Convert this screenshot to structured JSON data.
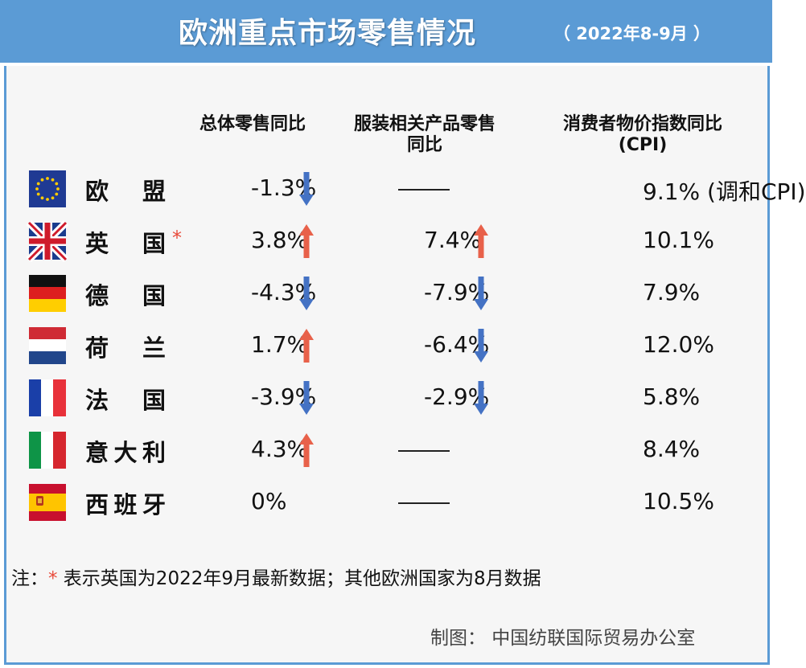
{
  "header": {
    "title": "欧洲重点市场零售情况",
    "period": "（ 2022年8-9月 ）"
  },
  "chart_data": {
    "type": "table",
    "columns": [
      "总体零售同比",
      "服装相关产品零售同比",
      "消费者物价指数同比 (CPI)"
    ],
    "rows": [
      {
        "flag": "eu-flag-icon",
        "country": "欧盟",
        "star": "",
        "total": "-1.3%",
        "total_dir": "down",
        "apparel": "——",
        "apparel_dir": "",
        "cpi": "9.1% (调和CPI)"
      },
      {
        "flag": "uk-flag-icon",
        "country": "英国",
        "star": "*",
        "total": "3.8%",
        "total_dir": "up",
        "apparel": "7.4%",
        "apparel_dir": "up",
        "cpi": "10.1%"
      },
      {
        "flag": "germany-flag-icon",
        "country": "德国",
        "star": "",
        "total": "-4.3%",
        "total_dir": "down",
        "apparel": "-7.9%",
        "apparel_dir": "down",
        "cpi": "7.9%"
      },
      {
        "flag": "netherlands-flag-icon",
        "country": "荷兰",
        "star": "",
        "total": "1.7%",
        "total_dir": "up",
        "apparel": "-6.4%",
        "apparel_dir": "down",
        "cpi": "12.0%"
      },
      {
        "flag": "france-flag-icon",
        "country": "法国",
        "star": "",
        "total": "-3.9%",
        "total_dir": "down",
        "apparel": "-2.9%",
        "apparel_dir": "down",
        "cpi": "5.8%"
      },
      {
        "flag": "italy-flag-icon",
        "country": "意大利",
        "star": "",
        "total": "4.3%",
        "total_dir": "up",
        "apparel": "——",
        "apparel_dir": "",
        "cpi": "8.4%"
      },
      {
        "flag": "spain-flag-icon",
        "country": "西班牙",
        "star": "",
        "total": "0%",
        "total_dir": "",
        "apparel": "——",
        "apparel_dir": "",
        "cpi": "10.5%"
      }
    ]
  },
  "column_headers": {
    "total": "总体零售同比",
    "apparel_line1": "服装相关产品零售",
    "apparel_line2": "同比",
    "cpi_line1": "消费者物价指数同比",
    "cpi_line2": "(CPI)"
  },
  "footer": {
    "note_prefix": "注：",
    "note_star": "*",
    "note_text": " 表示英国为2022年9月最新数据；其他欧洲国家为8月数据",
    "credit": "制图：  中国纺联国际贸易办公室"
  },
  "colors": {
    "header_bg": "#5b9bd5",
    "up_arrow": "#e8614a",
    "down_arrow": "#4472c4",
    "star": "#e84a3a"
  }
}
